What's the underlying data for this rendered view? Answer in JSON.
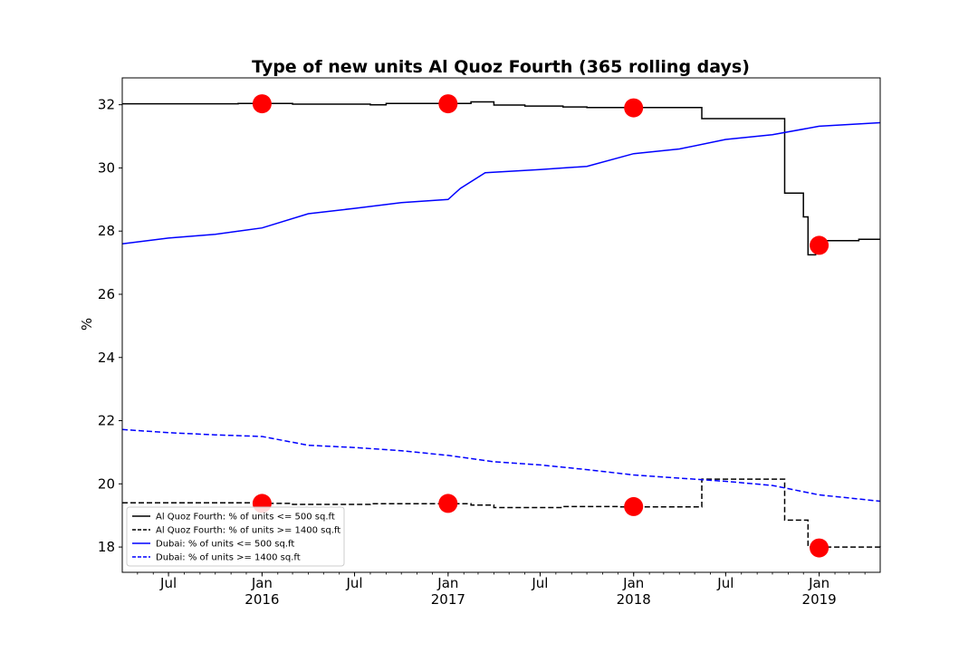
{
  "chart_data": {
    "type": "line",
    "title": "Type of new units Al Quoz Fourth (365 rolling days)",
    "ylabel": "%",
    "xlabel": "",
    "xlim": [
      "2015-04-01",
      "2019-05-01"
    ],
    "ylim": [
      17.2,
      32.85
    ],
    "yticks": [
      18,
      20,
      22,
      24,
      26,
      28,
      30,
      32
    ],
    "xticks": [
      {
        "date": "2015-07-01",
        "label": "Jul",
        "year": ""
      },
      {
        "date": "2016-01-01",
        "label": "Jan",
        "year": "2016"
      },
      {
        "date": "2016-07-01",
        "label": "Jul",
        "year": ""
      },
      {
        "date": "2017-01-01",
        "label": "Jan",
        "year": "2017"
      },
      {
        "date": "2017-07-01",
        "label": "Jul",
        "year": ""
      },
      {
        "date": "2018-01-01",
        "label": "Jan",
        "year": "2018"
      },
      {
        "date": "2018-07-01",
        "label": "Jul",
        "year": ""
      },
      {
        "date": "2019-01-01",
        "label": "Jan",
        "year": "2019"
      }
    ],
    "series": [
      {
        "name": "Al Quoz Fourth: % of units <= 500 sq.ft",
        "color": "#000000",
        "dash": "solid",
        "step": true,
        "points": [
          [
            "2015-04-01",
            32.03
          ],
          [
            "2015-11-15",
            32.04
          ],
          [
            "2016-03-01",
            32.02
          ],
          [
            "2016-08-01",
            32.0
          ],
          [
            "2016-09-01",
            32.04
          ],
          [
            "2017-02-15",
            32.09
          ],
          [
            "2017-04-01",
            31.99
          ],
          [
            "2017-06-01",
            31.96
          ],
          [
            "2017-08-15",
            31.93
          ],
          [
            "2017-10-01",
            31.91
          ],
          [
            "2018-05-15",
            31.56
          ],
          [
            "2018-10-25",
            29.2
          ],
          [
            "2018-12-01",
            28.45
          ],
          [
            "2018-12-10",
            27.25
          ],
          [
            "2018-12-25",
            27.7
          ],
          [
            "2019-03-20",
            27.74
          ],
          [
            "2019-05-01",
            27.74
          ]
        ]
      },
      {
        "name": "Al Quoz Fourth: % of units >= 1400 sq.ft",
        "color": "#000000",
        "dash": "dashed",
        "step": true,
        "points": [
          [
            "2015-04-01",
            19.4
          ],
          [
            "2016-01-01",
            19.38
          ],
          [
            "2016-03-01",
            19.35
          ],
          [
            "2016-08-01",
            19.37
          ],
          [
            "2017-02-15",
            19.33
          ],
          [
            "2017-04-01",
            19.25
          ],
          [
            "2017-08-15",
            19.28
          ],
          [
            "2017-12-01",
            19.27
          ],
          [
            "2018-05-15",
            20.15
          ],
          [
            "2018-10-25",
            18.85
          ],
          [
            "2018-12-10",
            18.0
          ],
          [
            "2019-05-01",
            17.95
          ]
        ]
      },
      {
        "name": "Dubai: % of units <= 500 sq.ft",
        "color": "#0000ff",
        "dash": "solid",
        "step": false,
        "points": [
          [
            "2015-04-01",
            27.6
          ],
          [
            "2015-07-01",
            27.78
          ],
          [
            "2015-10-01",
            27.9
          ],
          [
            "2016-01-01",
            28.1
          ],
          [
            "2016-04-01",
            28.55
          ],
          [
            "2016-07-01",
            28.72
          ],
          [
            "2016-10-01",
            28.9
          ],
          [
            "2017-01-01",
            29.0
          ],
          [
            "2017-01-25",
            29.35
          ],
          [
            "2017-03-15",
            29.85
          ],
          [
            "2017-07-01",
            29.95
          ],
          [
            "2017-10-01",
            30.05
          ],
          [
            "2018-01-01",
            30.45
          ],
          [
            "2018-04-01",
            30.6
          ],
          [
            "2018-07-01",
            30.9
          ],
          [
            "2018-10-01",
            31.05
          ],
          [
            "2019-01-01",
            31.32
          ],
          [
            "2019-05-01",
            31.43
          ]
        ]
      },
      {
        "name": "Dubai: % of units >= 1400 sq.ft",
        "color": "#0000ff",
        "dash": "dashed",
        "step": false,
        "points": [
          [
            "2015-04-01",
            21.72
          ],
          [
            "2015-07-01",
            21.62
          ],
          [
            "2015-10-01",
            21.55
          ],
          [
            "2016-01-01",
            21.5
          ],
          [
            "2016-04-01",
            21.22
          ],
          [
            "2016-07-01",
            21.15
          ],
          [
            "2016-10-01",
            21.05
          ],
          [
            "2017-01-01",
            20.9
          ],
          [
            "2017-04-01",
            20.7
          ],
          [
            "2017-07-01",
            20.6
          ],
          [
            "2017-10-01",
            20.45
          ],
          [
            "2018-01-01",
            20.28
          ],
          [
            "2018-04-01",
            20.18
          ],
          [
            "2018-07-01",
            20.08
          ],
          [
            "2018-10-01",
            19.95
          ],
          [
            "2019-01-01",
            19.65
          ],
          [
            "2019-05-01",
            19.45
          ]
        ]
      }
    ],
    "markers": {
      "color": "#ff0000",
      "points": [
        [
          "2016-01-01",
          32.03
        ],
        [
          "2017-01-01",
          32.03
        ],
        [
          "2018-01-01",
          31.9
        ],
        [
          "2019-01-01",
          27.55
        ],
        [
          "2016-01-01",
          19.38
        ],
        [
          "2017-01-01",
          19.38
        ],
        [
          "2018-01-01",
          19.28
        ],
        [
          "2019-01-01",
          17.97
        ]
      ]
    },
    "legend": {
      "placement": "lower-left"
    },
    "grid": false
  }
}
